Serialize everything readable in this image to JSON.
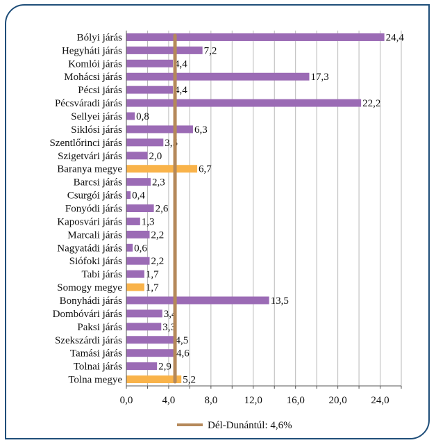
{
  "chart_data": {
    "type": "bar",
    "orientation": "horizontal",
    "categories": [
      "Bólyi járás",
      "Hegyháti járás",
      "Komlói járás",
      "Mohácsi járás",
      "Pécsi járás",
      "Pécsváradi járás",
      "Sellyei járás",
      "Siklósi járás",
      "Szentlőrinci járás",
      "Szigetvári járás",
      "Baranya megye",
      "Barcsi járás",
      "Csurgói járás",
      "Fonyódi járás",
      "Kaposvári járás",
      "Marcali járás",
      "Nagyatádi járás",
      "Siófoki járás",
      "Tabi járás",
      "Somogy megye",
      "Bonyhádi járás",
      "Dombóvári járás",
      "Paksi járás",
      "Szekszárdi járás",
      "Tamási járás",
      "Tolnai járás",
      "Tolna megye"
    ],
    "values": [
      24.4,
      7.2,
      4.4,
      17.3,
      4.4,
      22.2,
      0.8,
      6.3,
      3.5,
      2.0,
      6.7,
      2.3,
      0.4,
      2.6,
      1.3,
      2.2,
      0.6,
      2.2,
      1.7,
      1.7,
      13.5,
      3.4,
      3.3,
      4.5,
      4.6,
      2.9,
      5.2
    ],
    "value_labels": [
      "24,4",
      "7,2",
      "4,4",
      "17,3",
      "4,4",
      "22,2",
      "0,8",
      "6,3",
      "3,5",
      "2,0",
      "6,7",
      "2,3",
      "0,4",
      "2,6",
      "1,3",
      "2,2",
      "0,6",
      "2,2",
      "1,7",
      "1,7",
      "13,5",
      "3,4",
      "3,3",
      "4,5",
      "4,6",
      "2,9",
      "5,2"
    ],
    "highlight": [
      false,
      false,
      false,
      false,
      false,
      false,
      false,
      false,
      false,
      false,
      true,
      false,
      false,
      false,
      false,
      false,
      false,
      false,
      false,
      true,
      false,
      false,
      false,
      false,
      false,
      false,
      true
    ],
    "bar_color": "#9b6bb5",
    "highlight_color": "#f9b34a",
    "reference_line": {
      "value": 4.6,
      "label": "Dél-Dunántúl: 4,6%",
      "color": "#b5895a"
    },
    "xlim": [
      0,
      26
    ],
    "xticks": [
      0,
      4,
      8,
      12,
      16,
      20,
      24
    ],
    "xtick_labels": [
      "0,0",
      "4,0",
      "8,0",
      "12,0",
      "16,0",
      "20,0",
      "24,0"
    ],
    "grid": "vertical",
    "legend_position": "bottom"
  }
}
